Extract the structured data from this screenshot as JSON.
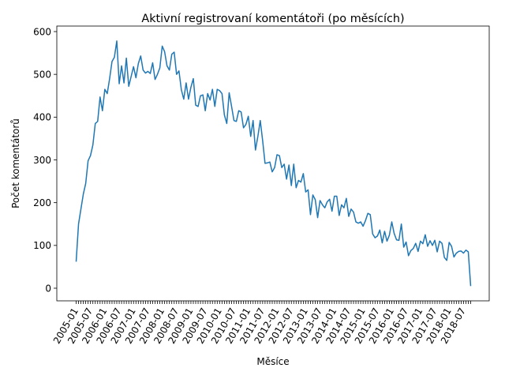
{
  "chart_data": {
    "type": "line",
    "title": "Aktivní registrovaní komentátoři (po měsících)",
    "xlabel": "Měsíce",
    "ylabel": "Počet komentátorů",
    "ylim": [
      -20,
      610
    ],
    "yticks": [
      0,
      100,
      200,
      300,
      400,
      500,
      600
    ],
    "x_start": "2005-01",
    "x_end": "2018-07",
    "xtick_labels": [
      "2005-01",
      "2005-07",
      "2006-01",
      "2006-07",
      "2007-01",
      "2007-07",
      "2008-01",
      "2008-07",
      "2009-01",
      "2009-07",
      "2010-01",
      "2010-07",
      "2011-01",
      "2011-07",
      "2012-01",
      "2012-07",
      "2013-01",
      "2013-07",
      "2014-01",
      "2014-07",
      "2015-01",
      "2015-07",
      "2016-01",
      "2016-07",
      "2017-01",
      "2017-07",
      "2018-01",
      "2018-07"
    ],
    "grid": false,
    "legend": "none",
    "colors": {
      "line": "#1f77b4"
    },
    "series": [
      {
        "values": [
          62,
          150,
          185,
          220,
          245,
          298,
          310,
          335,
          385,
          390,
          447,
          415,
          465,
          455,
          490,
          530,
          540,
          578,
          478,
          520,
          480,
          538,
          472,
          495,
          518,
          492,
          525,
          543,
          510,
          503,
          507,
          502,
          527,
          488,
          500,
          515,
          566,
          553,
          520,
          510,
          547,
          552,
          500,
          508,
          464,
          442,
          480,
          442,
          470,
          490,
          428,
          425,
          450,
          452,
          415,
          455,
          440,
          465,
          425,
          465,
          462,
          455,
          405,
          385,
          457,
          425,
          392,
          390,
          415,
          412,
          375,
          383,
          402,
          355,
          392,
          323,
          355,
          392,
          345,
          292,
          293,
          295,
          272,
          282,
          312,
          310,
          282,
          290,
          255,
          288,
          240,
          290,
          235,
          252,
          248,
          268,
          225,
          230,
          172,
          218,
          207,
          165,
          205,
          195,
          188,
          202,
          208,
          180,
          215,
          215,
          170,
          195,
          188,
          210,
          168,
          185,
          178,
          155,
          152,
          155,
          145,
          158,
          175,
          172,
          127,
          118,
          122,
          136,
          106,
          133,
          110,
          124,
          155,
          128,
          113,
          112,
          150,
          96,
          108,
          76,
          88,
          93,
          105,
          86,
          110,
          104,
          125,
          98,
          111,
          100,
          112,
          85,
          110,
          105,
          72,
          65,
          107,
          98,
          73,
          82,
          86,
          87,
          82,
          89,
          85,
          5
        ]
      }
    ]
  }
}
